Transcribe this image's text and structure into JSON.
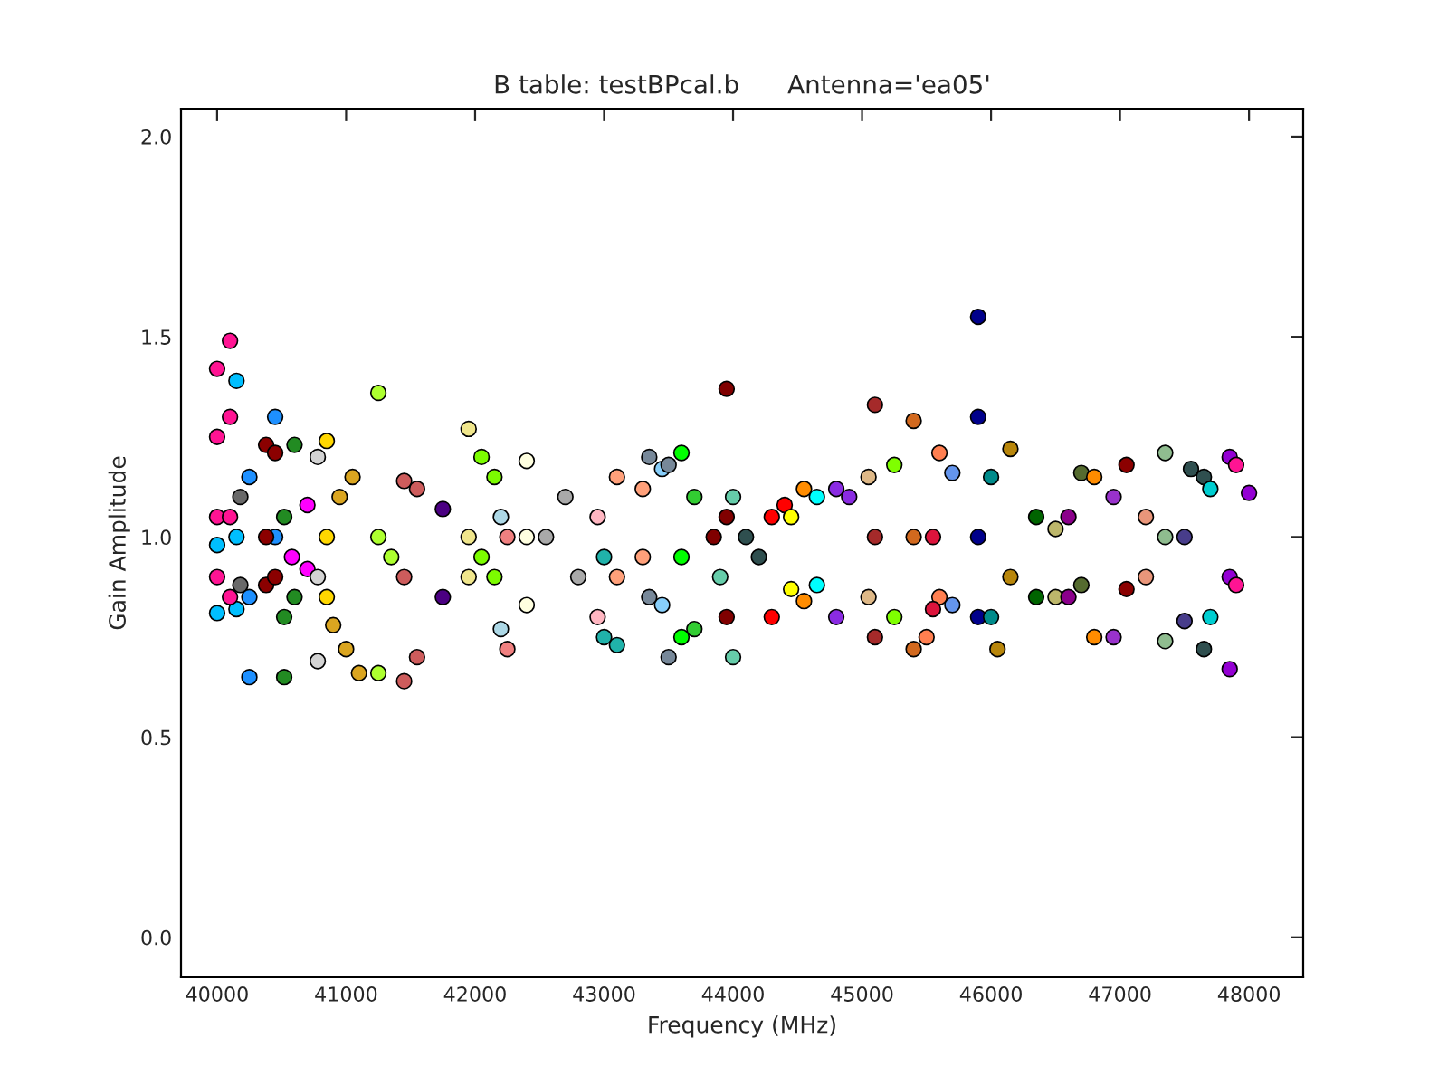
{
  "chart_data": {
    "type": "scatter",
    "title": "B table: testBPcal.b      Antenna='ea05'",
    "xlabel": "Frequency (MHz)",
    "ylabel": "Gain Amplitude",
    "xlim": [
      39720,
      48420
    ],
    "xticks": [
      40000,
      41000,
      42000,
      43000,
      44000,
      45000,
      46000,
      47000,
      48000
    ],
    "ylim": [
      -0.1,
      2.07
    ],
    "yticks": [
      {
        "value": 0,
        "label": "0.0"
      },
      {
        "value": 0.5,
        "label": "0.5"
      },
      {
        "value": 1,
        "label": "1.0"
      },
      {
        "value": 1.5,
        "label": "1.5"
      },
      {
        "value": 2,
        "label": "2.0"
      }
    ],
    "grid": false,
    "marker": "circle",
    "series": [
      {
        "color": "#00bfff",
        "x": [
          40000,
          40000,
          40150,
          40150,
          40150
        ],
        "values": [
          0.98,
          0.81,
          1.39,
          1.0,
          0.82
        ]
      },
      {
        "color": "#ff1493",
        "x": [
          40000,
          40000,
          40000,
          40000,
          40100,
          40100,
          40100,
          40100
        ],
        "values": [
          1.42,
          1.25,
          1.05,
          0.9,
          1.49,
          1.3,
          1.05,
          0.85
        ]
      },
      {
        "color": "#696969",
        "x": [
          40180,
          40180
        ],
        "values": [
          1.1,
          0.88
        ]
      },
      {
        "color": "#1e90ff",
        "x": [
          40250,
          40250,
          40250,
          40450,
          40450
        ],
        "values": [
          1.15,
          0.85,
          0.65,
          1.3,
          1.0
        ]
      },
      {
        "color": "#8b0000",
        "x": [
          40380,
          40380,
          40380,
          40450,
          40450
        ],
        "values": [
          1.23,
          1.0,
          0.88,
          1.21,
          0.9
        ]
      },
      {
        "color": "#228b22",
        "x": [
          40520,
          40520,
          40520,
          40600,
          40600
        ],
        "values": [
          1.05,
          0.8,
          0.65,
          1.23,
          0.85
        ]
      },
      {
        "color": "#ff00ff",
        "x": [
          40700,
          40700,
          40580
        ],
        "values": [
          1.08,
          0.92,
          0.95
        ]
      },
      {
        "color": "#d3d3d3",
        "x": [
          40780,
          40780,
          40780
        ],
        "values": [
          1.2,
          0.9,
          0.69
        ]
      },
      {
        "color": "#ffd700",
        "x": [
          40850,
          40850,
          40850
        ],
        "values": [
          1.24,
          1.0,
          0.85
        ]
      },
      {
        "color": "#daa520",
        "x": [
          40900,
          40950,
          41000,
          41050,
          41100
        ],
        "values": [
          0.78,
          1.1,
          0.72,
          1.15,
          0.66
        ]
      },
      {
        "color": "#adff2f",
        "x": [
          41250,
          41250,
          41250,
          41350
        ],
        "values": [
          1.36,
          1.0,
          0.66,
          0.95
        ]
      },
      {
        "color": "#cd5c5c",
        "x": [
          41450,
          41450,
          41450,
          41550,
          41550
        ],
        "values": [
          1.14,
          0.9,
          0.64,
          1.12,
          0.7
        ]
      },
      {
        "color": "#4b0082",
        "x": [
          41750,
          41750
        ],
        "values": [
          1.07,
          0.85
        ]
      },
      {
        "color": "#f0e68c",
        "x": [
          41950,
          41950,
          41950
        ],
        "values": [
          1.27,
          1.0,
          0.9
        ]
      },
      {
        "color": "#7cfc00",
        "x": [
          42050,
          42050,
          42150,
          42150
        ],
        "values": [
          1.2,
          0.95,
          1.15,
          0.9
        ]
      },
      {
        "color": "#add8e6",
        "x": [
          42200,
          42200
        ],
        "values": [
          1.05,
          0.77
        ]
      },
      {
        "color": "#f08080",
        "x": [
          42250,
          42250
        ],
        "values": [
          1.0,
          0.72
        ]
      },
      {
        "color": "#ffffe0",
        "x": [
          42400,
          42400,
          42400
        ],
        "values": [
          1.19,
          1.0,
          0.83
        ]
      },
      {
        "color": "#a9a9a9",
        "x": [
          42550,
          42700,
          42800
        ],
        "values": [
          1.0,
          1.1,
          0.9
        ]
      },
      {
        "color": "#ffb6c1",
        "x": [
          42950,
          42950
        ],
        "values": [
          1.05,
          0.8
        ]
      },
      {
        "color": "#ffa07a",
        "x": [
          43100,
          43100,
          43300,
          43300
        ],
        "values": [
          1.15,
          0.9,
          1.12,
          0.95
        ]
      },
      {
        "color": "#20b2aa",
        "x": [
          43000,
          43000,
          43100
        ],
        "values": [
          0.95,
          0.75,
          0.73
        ]
      },
      {
        "color": "#87cefa",
        "x": [
          43450,
          43450
        ],
        "values": [
          1.17,
          0.83
        ]
      },
      {
        "color": "#778899",
        "x": [
          43350,
          43350,
          43500,
          43500
        ],
        "values": [
          1.2,
          0.85,
          1.18,
          0.7
        ]
      },
      {
        "color": "#00ff00",
        "x": [
          43600,
          43600,
          43600
        ],
        "values": [
          1.21,
          0.95,
          0.75
        ]
      },
      {
        "color": "#32cd32",
        "x": [
          43700,
          43700
        ],
        "values": [
          1.1,
          0.77
        ]
      },
      {
        "color": "#800000",
        "x": [
          43950,
          43950,
          43950,
          43850
        ],
        "values": [
          1.37,
          1.05,
          0.8,
          1.0
        ]
      },
      {
        "color": "#66cdaa",
        "x": [
          44000,
          44000,
          43900
        ],
        "values": [
          1.1,
          0.7,
          0.9
        ]
      },
      {
        "color": "#2f4f4f",
        "x": [
          44100,
          44200
        ],
        "values": [
          1.0,
          0.95
        ]
      },
      {
        "color": "#ff0000",
        "x": [
          44300,
          44300,
          44400
        ],
        "values": [
          1.05,
          0.8,
          1.08
        ]
      },
      {
        "color": "#ffff00",
        "x": [
          44450,
          44450
        ],
        "values": [
          1.05,
          0.87
        ]
      },
      {
        "color": "#ff8c00",
        "x": [
          44550,
          44550
        ],
        "values": [
          1.12,
          0.84
        ]
      },
      {
        "color": "#00ffff",
        "x": [
          44650,
          44650
        ],
        "values": [
          1.1,
          0.88
        ]
      },
      {
        "color": "#8a2be2",
        "x": [
          44800,
          44800,
          44900
        ],
        "values": [
          1.12,
          0.8,
          1.1
        ]
      },
      {
        "color": "#a52a2a",
        "x": [
          45100,
          45100,
          45100
        ],
        "values": [
          1.33,
          1.0,
          0.75
        ]
      },
      {
        "color": "#deb887",
        "x": [
          45050,
          45050
        ],
        "values": [
          1.15,
          0.85
        ]
      },
      {
        "color": "#7fff00",
        "x": [
          45250,
          45250
        ],
        "values": [
          1.18,
          0.8
        ]
      },
      {
        "color": "#d2691e",
        "x": [
          45400,
          45400,
          45400
        ],
        "values": [
          1.29,
          1.0,
          0.72
        ]
      },
      {
        "color": "#ff7f50",
        "x": [
          45600,
          45600,
          45500
        ],
        "values": [
          1.21,
          0.85,
          0.75
        ]
      },
      {
        "color": "#6495ed",
        "x": [
          45700,
          45700
        ],
        "values": [
          1.16,
          0.83
        ]
      },
      {
        "color": "#dc143c",
        "x": [
          45550,
          45550
        ],
        "values": [
          1.0,
          0.82
        ]
      },
      {
        "color": "#00008b",
        "x": [
          45900,
          45900,
          45900,
          45900
        ],
        "values": [
          1.55,
          1.3,
          1.0,
          0.8
        ]
      },
      {
        "color": "#008b8b",
        "x": [
          46000,
          46000
        ],
        "values": [
          1.15,
          0.8
        ]
      },
      {
        "color": "#b8860b",
        "x": [
          46050,
          46150,
          46150
        ],
        "values": [
          0.72,
          1.22,
          0.9
        ]
      },
      {
        "color": "#006400",
        "x": [
          46350,
          46350
        ],
        "values": [
          1.05,
          0.85
        ]
      },
      {
        "color": "#bdb76b",
        "x": [
          46500,
          46500
        ],
        "values": [
          1.02,
          0.85
        ]
      },
      {
        "color": "#8b008b",
        "x": [
          46600,
          46600
        ],
        "values": [
          1.05,
          0.85
        ]
      },
      {
        "color": "#556b2f",
        "x": [
          46700,
          46700
        ],
        "values": [
          1.16,
          0.88
        ]
      },
      {
        "color": "#ff8c00",
        "x": [
          46800,
          46800
        ],
        "values": [
          1.15,
          0.75
        ]
      },
      {
        "color": "#9932cc",
        "x": [
          46950,
          46950
        ],
        "values": [
          1.1,
          0.75
        ]
      },
      {
        "color": "#8b0000",
        "x": [
          47050,
          47050
        ],
        "values": [
          1.18,
          0.87
        ]
      },
      {
        "color": "#e9967a",
        "x": [
          47200,
          47200
        ],
        "values": [
          1.05,
          0.9
        ]
      },
      {
        "color": "#8fbc8f",
        "x": [
          47350,
          47350,
          47350
        ],
        "values": [
          1.21,
          1.0,
          0.74
        ]
      },
      {
        "color": "#483d8b",
        "x": [
          47500,
          47500
        ],
        "values": [
          1.0,
          0.79
        ]
      },
      {
        "color": "#2f4f4f",
        "x": [
          47550,
          47650,
          47650
        ],
        "values": [
          1.17,
          1.15,
          0.72
        ]
      },
      {
        "color": "#00ced1",
        "x": [
          47700,
          47700
        ],
        "values": [
          1.12,
          0.8
        ]
      },
      {
        "color": "#9400d3",
        "x": [
          47850,
          47850,
          47850,
          48000
        ],
        "values": [
          1.2,
          0.9,
          0.67,
          1.11
        ]
      },
      {
        "color": "#ff1493",
        "x": [
          47900,
          47900
        ],
        "values": [
          1.18,
          0.88
        ]
      }
    ]
  }
}
